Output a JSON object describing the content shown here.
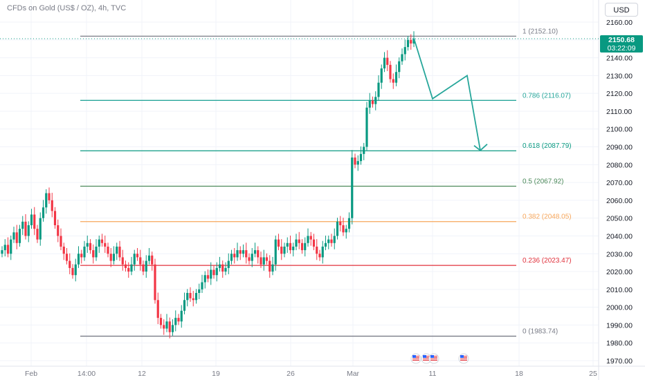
{
  "header": {
    "symbol": "CFDs on Gold (US$ / OZ), 4h, TVC",
    "currency_button": "USD"
  },
  "current_price": {
    "value_label": "2150.68",
    "countdown": "03:22:09",
    "value": 2150.68
  },
  "colors": {
    "up": "#089981",
    "down": "#f23645",
    "fib_1": "#787b86",
    "fib_0786": "#26a69a",
    "fib_0618": "#089981",
    "fib_05": "#4c8a5a",
    "fib_0382": "#f7a65a",
    "fib_0236": "#e0303b",
    "fib_0": "#787b86",
    "projection": "#26a69a"
  },
  "event_icons": [
    "us-flag-icon",
    "us-flag-icon",
    "us-flag-icon",
    "us-flag-icon"
  ],
  "chart_data": {
    "type": "candlestick",
    "timeframe": "4h",
    "y_axis": {
      "range": [
        1965,
        2165
      ],
      "ticks": [
        1970,
        1980,
        1990,
        2000,
        2010,
        2020,
        2030,
        2040,
        2050,
        2060,
        2070,
        2080,
        2090,
        2100,
        2110,
        2120,
        2130,
        2140,
        2150,
        2160
      ],
      "tick_labels": [
        "1970.00",
        "1980.00",
        "1990.00",
        "2000.00",
        "2010.00",
        "2020.00",
        "2030.00",
        "2040.00",
        "2050.00",
        "2060.00",
        "2070.00",
        "2080.00",
        "2090.00",
        "2100.00",
        "2110.00",
        "2120.00",
        "2130.00",
        "2140.00",
        "2150.00",
        "2160.00"
      ]
    },
    "x_axis": {
      "tick_labels": [
        "Feb",
        "14:00",
        "12",
        "19",
        "26",
        "Mar",
        "11",
        "18",
        "25"
      ]
    },
    "fibonacci_levels": [
      {
        "ratio": "1",
        "price": 2152.1,
        "label": "1 (2152.10)",
        "color_key": "fib_1"
      },
      {
        "ratio": "0.786",
        "price": 2116.07,
        "label": "0.786 (2116.07)",
        "color_key": "fib_0786"
      },
      {
        "ratio": "0.618",
        "price": 2087.79,
        "label": "0.618 (2087.79)",
        "color_key": "fib_0618"
      },
      {
        "ratio": "0.5",
        "price": 2067.92,
        "label": "0.5 (2067.92)",
        "color_key": "fib_05"
      },
      {
        "ratio": "0.382",
        "price": 2048.05,
        "label": "0.382 (2048.05)",
        "color_key": "fib_0382"
      },
      {
        "ratio": "0.236",
        "price": 2023.47,
        "label": "0.236 (2023.47)",
        "color_key": "fib_0236"
      },
      {
        "ratio": "0",
        "price": 1983.74,
        "label": "0 (1983.74)",
        "color_key": "fib_0"
      }
    ],
    "projected_path_prices": [
      2151,
      2117,
      2130,
      2088
    ],
    "candle_closes": [
      2032,
      2035,
      2030,
      2038,
      2042,
      2036,
      2044,
      2048,
      2040,
      2046,
      2052,
      2044,
      2038,
      2050,
      2056,
      2064,
      2060,
      2054,
      2046,
      2040,
      2034,
      2030,
      2026,
      2022,
      2018,
      2024,
      2030,
      2028,
      2034,
      2036,
      2032,
      2028,
      2034,
      2038,
      2036,
      2034,
      2030,
      2026,
      2030,
      2034,
      2028,
      2024,
      2022,
      2020,
      2024,
      2030,
      2028,
      2024,
      2020,
      2026,
      2029,
      2024,
      2004,
      1994,
      1990,
      1988,
      1992,
      1986,
      1990,
      1994,
      1992,
      1998,
      2004,
      2008,
      2005,
      2004,
      2008,
      2010,
      2014,
      2018,
      2016,
      2021,
      2018,
      2022,
      2024,
      2020,
      2022,
      2026,
      2030,
      2028,
      2032,
      2030,
      2032,
      2028,
      2026,
      2030,
      2032,
      2028,
      2024,
      2028,
      2026,
      2020,
      2024,
      2038,
      2034,
      2030,
      2034,
      2036,
      2032,
      2034,
      2038,
      2036,
      2032,
      2036,
      2040,
      2038,
      2034,
      2030,
      2028,
      2034,
      2036,
      2038,
      2036,
      2040,
      2048,
      2046,
      2042,
      2044,
      2050,
      2084,
      2080,
      2082,
      2086,
      2090,
      2112,
      2116,
      2114,
      2118,
      2126,
      2134,
      2140,
      2136,
      2128,
      2126,
      2132,
      2138,
      2142,
      2146,
      2150,
      2148,
      2150.68
    ]
  }
}
